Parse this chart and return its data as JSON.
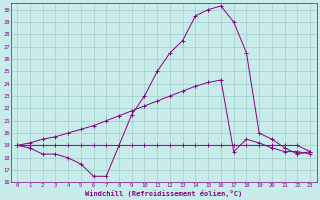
{
  "xlabel": "Windchill (Refroidissement éolien,°C)",
  "xlim": [
    -0.5,
    23.5
  ],
  "ylim": [
    16,
    30.5
  ],
  "xticks": [
    0,
    1,
    2,
    3,
    4,
    5,
    6,
    7,
    8,
    9,
    10,
    11,
    12,
    13,
    14,
    15,
    16,
    17,
    18,
    19,
    20,
    21,
    22,
    23
  ],
  "yticks": [
    16,
    17,
    18,
    19,
    20,
    21,
    22,
    23,
    24,
    25,
    26,
    27,
    28,
    29,
    30
  ],
  "bg_color": "#c8ecea",
  "line_color": "#880088",
  "grid_color": "#a0cccc",
  "line1_x": [
    0,
    1,
    2,
    3,
    4,
    5,
    6,
    7,
    8,
    9,
    10,
    11,
    12,
    13,
    14,
    15,
    16,
    17,
    18,
    19,
    20,
    21,
    22,
    23
  ],
  "line1_y": [
    19,
    18.8,
    18.3,
    18.3,
    18.0,
    17.5,
    16.5,
    16.5,
    19.0,
    21.5,
    23.0,
    25.0,
    26.5,
    27.5,
    29.5,
    30.0,
    30.3,
    29.0,
    26.5,
    20.0,
    19.5,
    18.8,
    18.3,
    18.5
  ],
  "line2_x": [
    0,
    1,
    2,
    3,
    4,
    5,
    6,
    7,
    8,
    9,
    10,
    11,
    12,
    13,
    14,
    15,
    16,
    17,
    18,
    19,
    20,
    21,
    22,
    23
  ],
  "line2_y": [
    19,
    19,
    19,
    19,
    19,
    19,
    19,
    19,
    19,
    19,
    19,
    19,
    19,
    19,
    19,
    19,
    19,
    19,
    19,
    19,
    19,
    19,
    19,
    18.5
  ],
  "line3_x": [
    0,
    1,
    2,
    3,
    4,
    5,
    6,
    7,
    8,
    9,
    10,
    11,
    12,
    13,
    14,
    15,
    16,
    17,
    18,
    19,
    20,
    21,
    22,
    23
  ],
  "line3_y": [
    19,
    19.2,
    19.5,
    19.7,
    20.0,
    20.3,
    20.6,
    21.0,
    21.4,
    21.8,
    22.2,
    22.6,
    23.0,
    23.4,
    23.8,
    24.1,
    24.3,
    18.5,
    19.5,
    19.2,
    18.8,
    18.5,
    18.5,
    18.3
  ]
}
